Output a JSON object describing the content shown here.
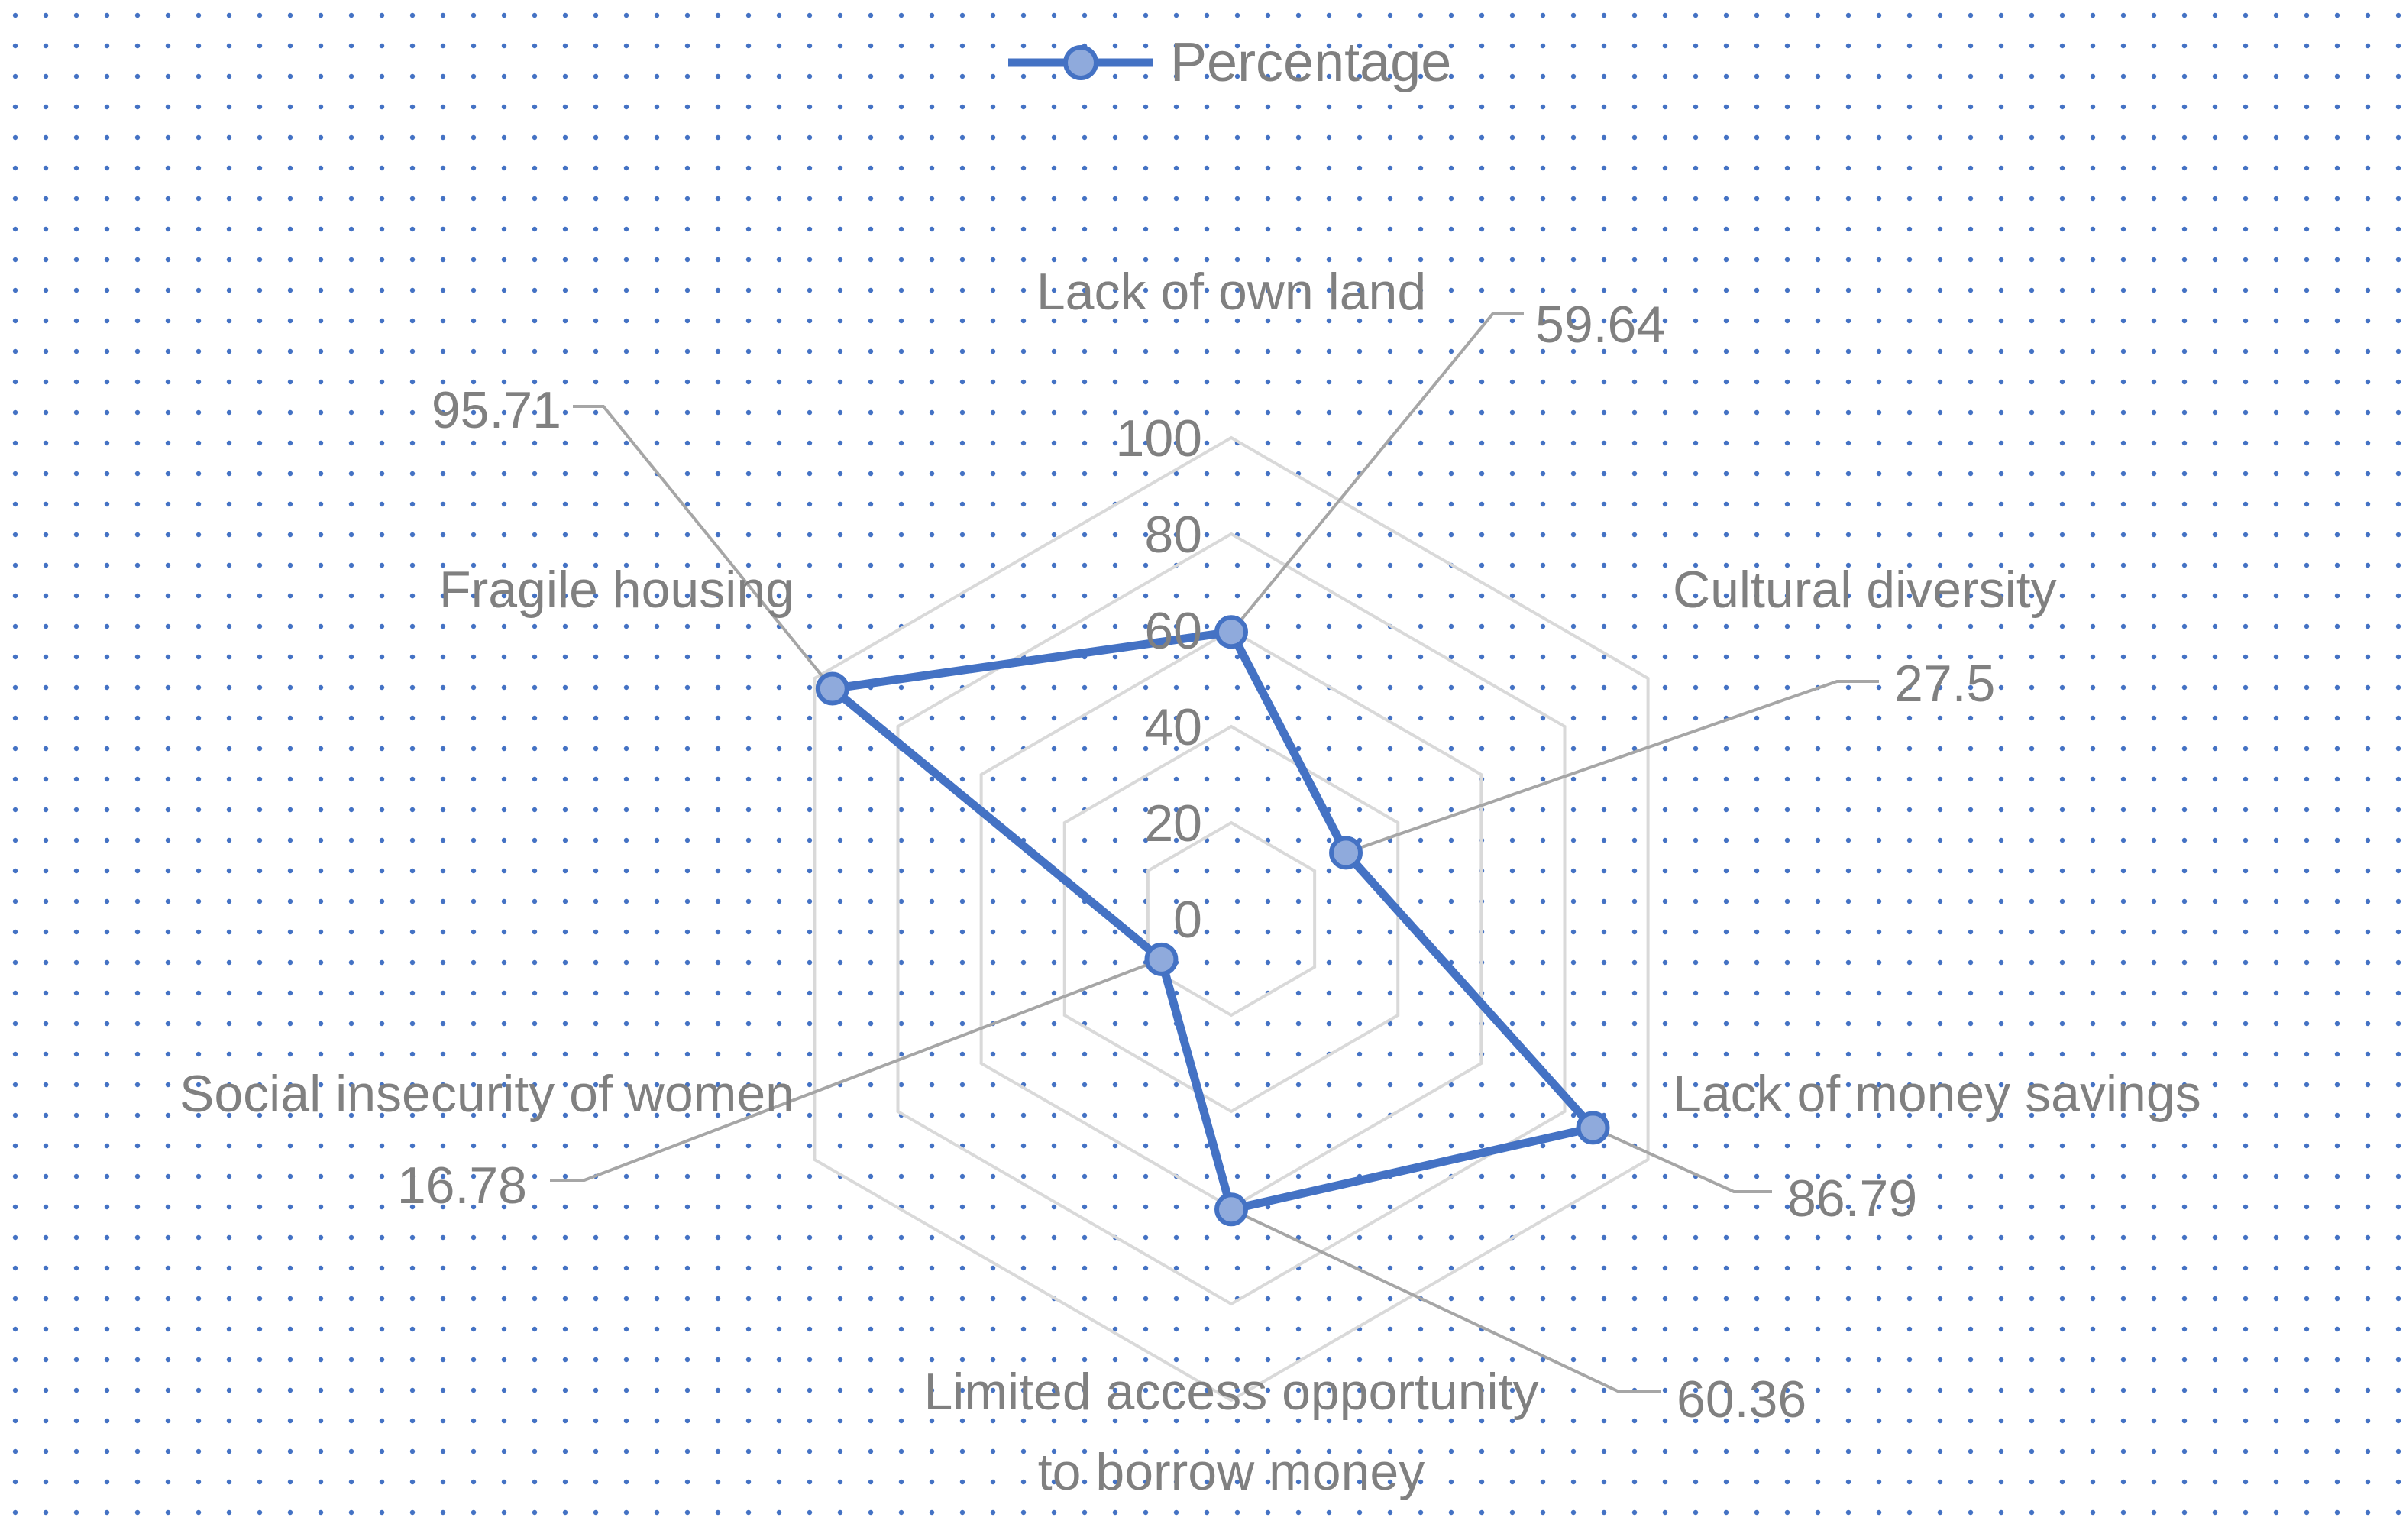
{
  "chart_data": {
    "type": "radar",
    "categories": [
      "Lack of own land",
      "Cultural diversity",
      "Lack of money savings",
      "Limited access opportunity to borrow money",
      "Social insecurity of women",
      "Fragile housing"
    ],
    "category_label_lines": [
      [
        "Lack of own land"
      ],
      [
        "Cultural diversity"
      ],
      [
        "Lack of money savings"
      ],
      [
        "Limited access opportunity",
        "to borrow money"
      ],
      [
        "Social insecurity of women"
      ],
      [
        "Fragile housing"
      ]
    ],
    "series": [
      {
        "name": "Percentage",
        "values": [
          59.64,
          27.5,
          86.79,
          60.36,
          16.78,
          95.71
        ],
        "data_labels": [
          "59.64",
          "27.5",
          "86.79",
          "60.36",
          "16.78",
          "95.71"
        ]
      }
    ],
    "r_ticks": [
      "0",
      "20",
      "40",
      "60",
      "80",
      "100"
    ],
    "rlim": [
      0,
      100
    ],
    "grid": true,
    "legend": "top-center",
    "title": ""
  },
  "colors": {
    "series": "#4472C4",
    "marker_fill": "#8FAADC",
    "grid": "#D9D9D9",
    "text": "#808080",
    "leader": "#A6A6A6",
    "background_dots": "#4472C4"
  }
}
